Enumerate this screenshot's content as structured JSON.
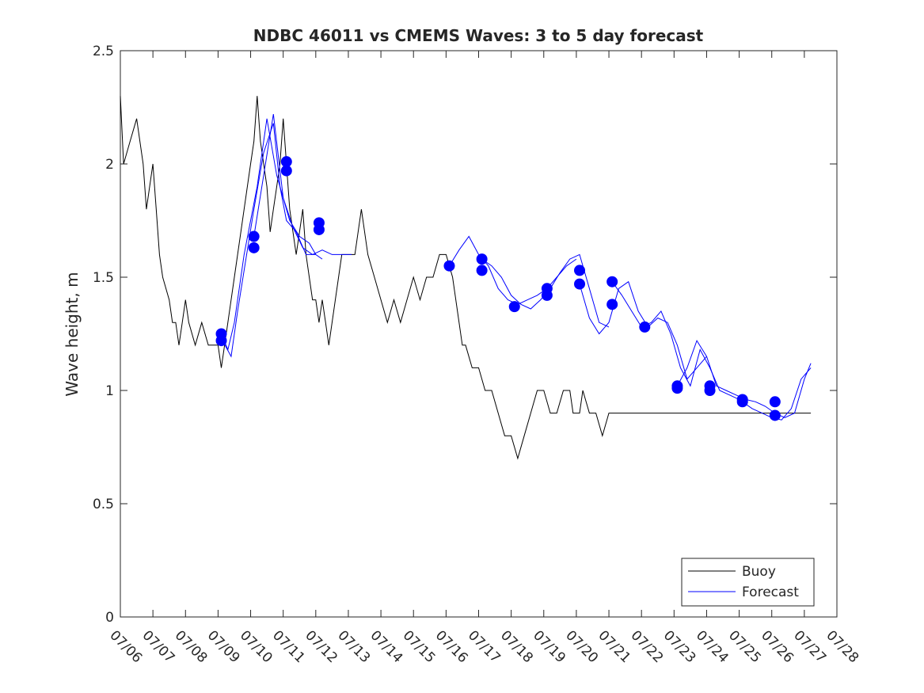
{
  "chart_data": {
    "type": "line",
    "title": "NDBC 46011 vs CMEMS Waves: 3 to 5 day forecast",
    "xlabel": "",
    "ylabel": "Wave height, m",
    "x_unit": "date (July)",
    "xlim": [
      "07/06",
      "07/28"
    ],
    "ylim": [
      0,
      2.5
    ],
    "yticks": [
      0,
      0.5,
      1,
      1.5,
      2,
      2.5
    ],
    "ytick_labels": [
      "0",
      "0.5",
      "1",
      "1.5",
      "2",
      "2.5"
    ],
    "xtick_labels": [
      "07/06",
      "07/07",
      "07/08",
      "07/09",
      "07/10",
      "07/11",
      "07/12",
      "07/13",
      "07/14",
      "07/15",
      "07/16",
      "07/17",
      "07/18",
      "07/19",
      "07/20",
      "07/21",
      "07/22",
      "07/23",
      "07/24",
      "07/25",
      "07/26",
      "07/27",
      "07/28"
    ],
    "grid": false,
    "legend": {
      "placement": "bottom-right",
      "entries": [
        "Buoy",
        "Forecast"
      ]
    },
    "colors": {
      "buoy": "#000000",
      "forecast": "#0000ff"
    },
    "series": [
      {
        "name": "Buoy",
        "x_days_note": "day offsets from 07/06 00:00",
        "x": [
          0,
          0.1,
          0.3,
          0.5,
          0.6,
          0.7,
          0.8,
          0.9,
          1.0,
          1.1,
          1.2,
          1.3,
          1.5,
          1.6,
          1.7,
          1.8,
          1.9,
          2.0,
          2.1,
          2.3,
          2.5,
          2.7,
          2.9,
          3.0,
          3.1,
          3.3,
          3.5,
          3.7,
          3.8,
          3.9,
          4.0,
          4.1,
          4.2,
          4.3,
          4.4,
          4.5,
          4.6,
          4.7,
          4.8,
          4.9,
          5.0,
          5.1,
          5.2,
          5.3,
          5.4,
          5.5,
          5.6,
          5.7,
          5.8,
          5.9,
          6.0,
          6.1,
          6.2,
          6.3,
          6.4,
          6.5,
          6.6,
          6.7,
          6.8,
          6.9,
          7.0,
          7.2,
          7.4,
          7.6,
          7.8,
          8.0,
          8.2,
          8.4,
          8.6,
          8.8,
          9.0,
          9.2,
          9.4,
          9.6,
          9.8,
          10.0,
          10.2,
          10.3,
          10.4,
          10.5,
          10.6,
          10.8,
          11.0,
          11.2,
          11.4,
          11.6,
          11.8,
          12.0,
          12.2,
          12.4,
          12.6,
          12.8,
          13.0,
          13.2,
          13.4,
          13.6,
          13.8,
          13.9,
          14.0,
          14.1,
          14.2,
          14.4,
          14.6,
          14.8,
          15.0,
          15.2,
          15.4,
          15.6,
          15.8,
          16.0,
          16.2,
          16.4,
          16.6,
          16.8,
          17.0,
          17.1,
          17.2,
          17.4,
          17.6,
          17.8,
          18.0,
          18.2,
          18.4,
          18.6,
          18.8,
          19.0,
          19.2,
          19.4,
          19.6,
          19.8,
          20.0,
          20.2,
          20.4,
          20.6,
          20.8,
          21.0,
          21.2
        ],
        "y": [
          2.3,
          2.0,
          2.1,
          2.2,
          2.1,
          2.0,
          1.8,
          1.9,
          2.0,
          1.8,
          1.6,
          1.5,
          1.4,
          1.3,
          1.3,
          1.2,
          1.3,
          1.4,
          1.3,
          1.2,
          1.3,
          1.2,
          1.2,
          1.2,
          1.1,
          1.3,
          1.5,
          1.7,
          1.8,
          1.9,
          2.0,
          2.1,
          2.3,
          2.1,
          2.0,
          1.9,
          1.7,
          1.8,
          1.9,
          2.0,
          2.2,
          2.0,
          1.8,
          1.7,
          1.6,
          1.7,
          1.8,
          1.6,
          1.5,
          1.4,
          1.4,
          1.3,
          1.4,
          1.3,
          1.2,
          1.3,
          1.4,
          1.5,
          1.6,
          1.6,
          1.6,
          1.6,
          1.8,
          1.6,
          1.5,
          1.4,
          1.3,
          1.4,
          1.3,
          1.4,
          1.5,
          1.4,
          1.5,
          1.5,
          1.6,
          1.6,
          1.5,
          1.4,
          1.3,
          1.2,
          1.2,
          1.1,
          1.1,
          1.0,
          1.0,
          0.9,
          0.8,
          0.8,
          0.7,
          0.8,
          0.9,
          1.0,
          1.0,
          0.9,
          0.9,
          1.0,
          1.0,
          0.9,
          0.9,
          0.9,
          1.0,
          0.9,
          0.9,
          0.8,
          0.9,
          0.9,
          0.9,
          0.9,
          0.9,
          0.9,
          0.9,
          0.9,
          0.9,
          0.9,
          0.9,
          0.9,
          0.9,
          0.9,
          0.9,
          0.9,
          0.9,
          0.9,
          0.9,
          0.9,
          0.9,
          0.9,
          0.9,
          0.9,
          0.9,
          0.9,
          0.9,
          0.9,
          0.9,
          0.9,
          0.9,
          0.9,
          0.9
        ]
      },
      {
        "name": "Forecast",
        "runs": [
          {
            "x": [
              3.1,
              3.3,
              3.5,
              3.8,
              4.0,
              4.2,
              4.5,
              4.8,
              5.0,
              5.2,
              5.5,
              5.8,
              6.0,
              6.2
            ],
            "y": [
              1.25,
              1.18,
              1.3,
              1.6,
              1.75,
              1.9,
              2.2,
              1.95,
              1.85,
              1.75,
              1.68,
              1.65,
              1.6,
              1.58
            ]
          },
          {
            "x": [
              3.1,
              3.4,
              3.6,
              3.9,
              4.1,
              4.4,
              4.7,
              4.9,
              5.1,
              5.4,
              5.7,
              6.0
            ],
            "y": [
              1.23,
              1.15,
              1.35,
              1.62,
              1.8,
              2.05,
              2.18,
              1.9,
              1.75,
              1.7,
              1.6,
              1.6
            ]
          },
          {
            "x": [
              4.1,
              4.4,
              4.7,
              5.0,
              5.3,
              5.6,
              5.9,
              6.2,
              6.5,
              6.8,
              7.1
            ],
            "y": [
              1.68,
              1.95,
              2.22,
              1.85,
              1.72,
              1.63,
              1.6,
              1.62,
              1.6,
              1.6,
              1.6
            ]
          },
          {
            "x": [
              10.1,
              10.4,
              10.7,
              11.0,
              11.3,
              11.6,
              11.9,
              12.2,
              12.5,
              12.8,
              13.1,
              13.4,
              13.7,
              14.0
            ],
            "y": [
              1.55,
              1.62,
              1.68,
              1.6,
              1.55,
              1.45,
              1.4,
              1.38,
              1.4,
              1.42,
              1.45,
              1.5,
              1.55,
              1.58
            ]
          },
          {
            "x": [
              11.1,
              11.4,
              11.7,
              12.0,
              12.3,
              12.6,
              12.9,
              13.2,
              13.5,
              13.8,
              14.1,
              14.4,
              14.7,
              15.0
            ],
            "y": [
              1.58,
              1.55,
              1.5,
              1.42,
              1.38,
              1.36,
              1.4,
              1.45,
              1.52,
              1.58,
              1.6,
              1.45,
              1.3,
              1.28
            ]
          },
          {
            "x": [
              14.1,
              14.4,
              14.7,
              15.0,
              15.3,
              15.6,
              15.9,
              16.2,
              16.5,
              16.8,
              17.1,
              17.4,
              17.7,
              18.0
            ],
            "y": [
              1.47,
              1.32,
              1.25,
              1.3,
              1.45,
              1.48,
              1.35,
              1.28,
              1.32,
              1.3,
              1.2,
              1.05,
              1.1,
              1.15
            ]
          },
          {
            "x": [
              15.1,
              15.4,
              15.7,
              16.0,
              16.3,
              16.6,
              16.9,
              17.2,
              17.5,
              17.8,
              18.1,
              18.4,
              18.7,
              19.0
            ],
            "y": [
              1.48,
              1.42,
              1.35,
              1.28,
              1.3,
              1.35,
              1.25,
              1.1,
              1.02,
              1.18,
              1.1,
              1.0,
              0.98,
              0.96
            ]
          },
          {
            "x": [
              17.1,
              17.4,
              17.7,
              18.0,
              18.3,
              18.6,
              18.9,
              19.2,
              19.5,
              19.8,
              20.1,
              20.4,
              20.7,
              21.0,
              21.2
            ],
            "y": [
              1.02,
              1.1,
              1.22,
              1.15,
              1.02,
              1.0,
              0.98,
              0.96,
              0.95,
              0.93,
              0.9,
              0.88,
              0.9,
              1.05,
              1.12
            ]
          },
          {
            "x": [
              19.1,
              19.4,
              19.7,
              20.0,
              20.3,
              20.6,
              20.9,
              21.2
            ],
            "y": [
              0.95,
              0.92,
              0.9,
              0.88,
              0.87,
              0.92,
              1.05,
              1.1
            ]
          }
        ],
        "markers": {
          "x": [
            3.1,
            3.1,
            4.1,
            4.1,
            5.1,
            5.1,
            6.1,
            6.1,
            10.1,
            11.1,
            11.1,
            12.1,
            13.1,
            13.1,
            14.1,
            14.1,
            15.1,
            15.1,
            16.1,
            17.1,
            17.1,
            18.1,
            18.1,
            19.1,
            19.1,
            20.1,
            20.1
          ],
          "y": [
            1.25,
            1.22,
            1.68,
            1.63,
            2.01,
            1.97,
            1.74,
            1.71,
            1.55,
            1.58,
            1.53,
            1.37,
            1.45,
            1.42,
            1.53,
            1.47,
            1.48,
            1.38,
            1.28,
            1.02,
            1.01,
            1.02,
            1.0,
            0.96,
            0.95,
            0.95,
            0.89
          ]
        }
      }
    ]
  }
}
